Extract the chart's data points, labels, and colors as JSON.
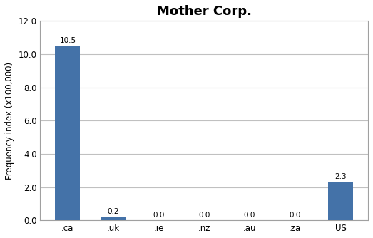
{
  "title": "Mother Corp.",
  "categories": [
    ".ca",
    ".uk",
    ".ie",
    ".nz",
    ".au",
    ".za",
    "US"
  ],
  "values": [
    10.5,
    0.2,
    0.0,
    0.0,
    0.0,
    0.0,
    2.3
  ],
  "bar_color": "#4472a8",
  "ylabel": "Frequency index (x100,000)",
  "ylim": [
    0,
    12.0
  ],
  "yticks": [
    0.0,
    2.0,
    4.0,
    6.0,
    8.0,
    10.0,
    12.0
  ],
  "title_fontsize": 13,
  "label_fontsize": 8.5,
  "tick_fontsize": 8.5,
  "annotation_fontsize": 7.5,
  "background_color": "#ffffff",
  "grid_color": "#c0c0c0",
  "spine_color": "#a0a0a0"
}
